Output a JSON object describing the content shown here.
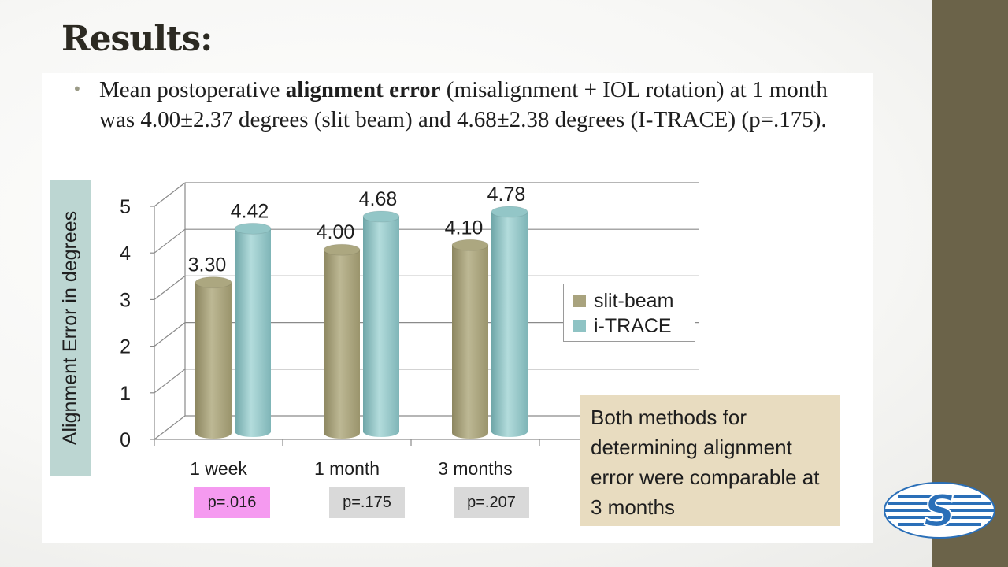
{
  "slide": {
    "title": "Results:",
    "bullet": {
      "text_before": "Mean postoperative ",
      "bold": "alignment error",
      "text_after": " (misalignment + IOL rotation) at 1 month was 4.00±2.37 degrees (slit beam) and 4.68±2.38 degrees (I-TRACE) (p=.175)."
    },
    "callout": "Both methods for determining alignment error were comparable at 3 months",
    "colors": {
      "right_band": "#6b6349",
      "ylabel_box": "#bcd6d2",
      "callout_bg": "#e8dcc0",
      "p_highlight": "#f59af0",
      "p_gray": "#d9d9d9"
    },
    "logo_icon": "company-logo-icon"
  },
  "chart_data": {
    "type": "bar",
    "style": "3d-cylinder",
    "categories": [
      "1 week",
      "1 month",
      "3 months"
    ],
    "series": [
      {
        "name": "slit-beam",
        "values": [
          3.3,
          4.0,
          4.1
        ],
        "labels": [
          "3.30",
          "4.00",
          "4.10"
        ],
        "color": "#a9a37e"
      },
      {
        "name": "i-TRACE",
        "values": [
          4.42,
          4.68,
          4.78
        ],
        "labels": [
          "4.42",
          "4.68",
          "4.78"
        ],
        "color": "#8fc3c4"
      }
    ],
    "ylabel": "Alignment Error in degrees",
    "ylim": [
      0,
      5
    ],
    "yticks": [
      "0",
      "1",
      "2",
      "3",
      "4",
      "5"
    ],
    "grid": true,
    "legend_position": "right",
    "p_values": [
      {
        "label": "p=.016",
        "highlight": true
      },
      {
        "label": "p=.175",
        "highlight": false
      },
      {
        "label": "p=.207",
        "highlight": false
      }
    ]
  }
}
